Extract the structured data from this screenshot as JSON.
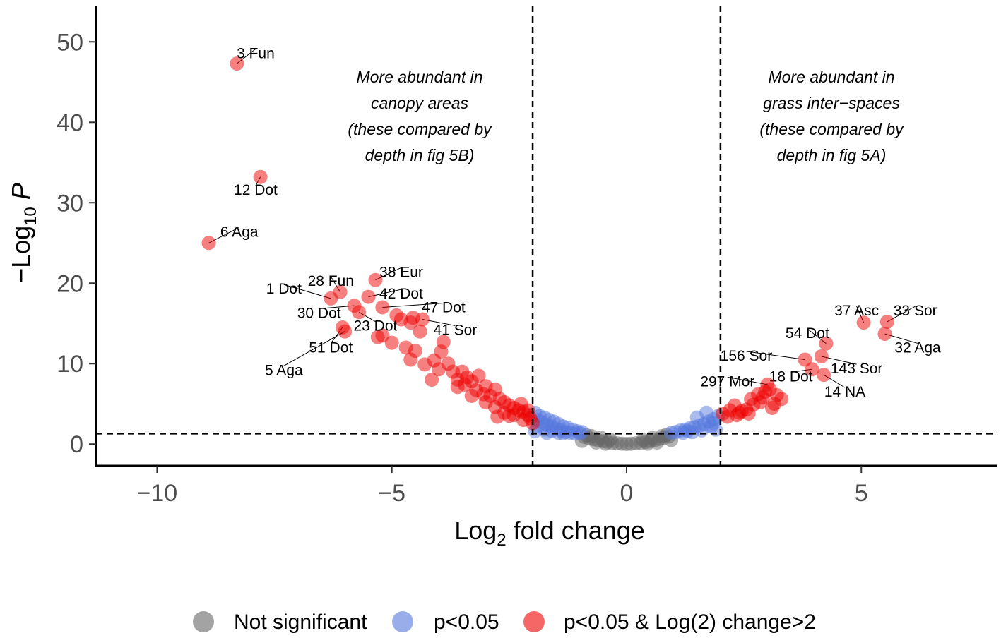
{
  "chart_data": {
    "type": "scatter",
    "subtype": "volcano",
    "xlabel": "Log2 fold change",
    "ylabel": "-Log10 P",
    "xlim": [
      -11.3,
      7.9
    ],
    "ylim": [
      -2.7,
      54.5
    ],
    "xticks": [
      -10,
      -5,
      0,
      5
    ],
    "xtick_labels": [
      "−10",
      "−5",
      "0",
      "5"
    ],
    "yticks": [
      0,
      10,
      20,
      30,
      40,
      50
    ],
    "ytick_labels": [
      "0",
      "10",
      "20",
      "30",
      "40",
      "50"
    ],
    "thresholds": {
      "log2fc": [
        -2,
        2
      ],
      "neg_log10_p": 1.3
    },
    "colors": {
      "ns": "#666666",
      "p": "#5577dd",
      "both": "#ee0000"
    },
    "legend": {
      "position": "bottom",
      "items": [
        {
          "key": "ns",
          "label": "Not significant"
        },
        {
          "key": "p",
          "label": "p<0.05"
        },
        {
          "key": "both",
          "label": "p<0.05 & Log(2) change>2"
        }
      ]
    },
    "annotations": [
      {
        "side": "left",
        "lines": [
          "More abundant in",
          "canopy areas",
          "(these compared by",
          "depth in fig 5B)"
        ]
      },
      {
        "side": "right",
        "lines": [
          "More abundant in",
          "grass inter−spaces",
          "(these compared by",
          "depth in fig 5A)"
        ]
      }
    ],
    "labeled_points": [
      {
        "label": "3 Fun",
        "x": -8.3,
        "y": 47.3,
        "lx": -7.9,
        "ly": 48.6
      },
      {
        "label": "12 Dot",
        "x": -7.8,
        "y": 33.2,
        "lx": -7.9,
        "ly": 31.6
      },
      {
        "label": "6 Aga",
        "x": -8.9,
        "y": 25.0,
        "lx": -8.25,
        "ly": 26.4
      },
      {
        "label": "1 Dot",
        "x": -6.3,
        "y": 18.1,
        "lx": -7.3,
        "ly": 19.3
      },
      {
        "label": "28 Fun",
        "x": -6.1,
        "y": 18.9,
        "lx": -6.3,
        "ly": 20.3
      },
      {
        "label": "38 Eur",
        "x": -5.35,
        "y": 20.4,
        "lx": -4.8,
        "ly": 21.4
      },
      {
        "label": "42 Dot",
        "x": -5.5,
        "y": 18.3,
        "lx": -4.8,
        "ly": 18.7
      },
      {
        "label": "30 Dot",
        "x": -5.8,
        "y": 17.2,
        "lx": -6.55,
        "ly": 16.3
      },
      {
        "label": "47 Dot",
        "x": -5.2,
        "y": 17.0,
        "lx": -3.9,
        "ly": 17.0
      },
      {
        "label": "23 Dot",
        "x": -5.7,
        "y": 16.4,
        "lx": -5.35,
        "ly": 14.7
      },
      {
        "label": "41 Sor",
        "x": -4.35,
        "y": 15.5,
        "lx": -3.65,
        "ly": 14.2
      },
      {
        "label": "51 Dot",
        "x": -6.05,
        "y": 14.5,
        "lx": -6.3,
        "ly": 12.0
      },
      {
        "label": "5 Aga",
        "x": -6.0,
        "y": 14.0,
        "lx": -7.3,
        "ly": 9.2
      },
      {
        "label": "37 Asc",
        "x": 5.05,
        "y": 15.1,
        "lx": 4.9,
        "ly": 16.6
      },
      {
        "label": "33 Sor",
        "x": 5.55,
        "y": 15.2,
        "lx": 6.15,
        "ly": 16.6
      },
      {
        "label": "54 Dot",
        "x": 4.25,
        "y": 12.5,
        "lx": 3.85,
        "ly": 13.8
      },
      {
        "label": "32 Aga",
        "x": 5.5,
        "y": 13.7,
        "lx": 6.2,
        "ly": 12.0
      },
      {
        "label": "156 Sor",
        "x": 3.8,
        "y": 10.5,
        "lx": 2.55,
        "ly": 11.0
      },
      {
        "label": "143 Sor",
        "x": 4.15,
        "y": 10.9,
        "lx": 4.9,
        "ly": 9.4
      },
      {
        "label": "18 Dot",
        "x": 3.95,
        "y": 9.3,
        "lx": 3.5,
        "ly": 8.4
      },
      {
        "label": "14 NA",
        "x": 4.2,
        "y": 8.6,
        "lx": 4.65,
        "ly": 6.5
      },
      {
        "label": "297 Mor",
        "x": 3.0,
        "y": 7.4,
        "lx": 2.15,
        "ly": 7.8
      }
    ],
    "sig_fc": [
      [
        -3.9,
        12.7
      ],
      [
        -3.95,
        11.5
      ],
      [
        -4.1,
        10.4
      ],
      [
        -3.8,
        10.0
      ],
      [
        -4.6,
        10.5
      ],
      [
        -4.3,
        9.9
      ],
      [
        -4.0,
        9.3
      ],
      [
        -4.15,
        8.0
      ],
      [
        -5.0,
        12.6
      ],
      [
        -5.2,
        13.5
      ],
      [
        -4.7,
        12.0
      ],
      [
        -4.5,
        11.6
      ],
      [
        -4.8,
        15.5
      ],
      [
        -4.6,
        15.1
      ],
      [
        -4.4,
        14.0
      ],
      [
        -4.55,
        15.7
      ],
      [
        -4.9,
        16.0
      ],
      [
        -5.3,
        13.3
      ],
      [
        -3.5,
        9.0
      ],
      [
        -3.4,
        8.3
      ],
      [
        -3.6,
        8.0
      ],
      [
        -3.3,
        7.8
      ],
      [
        -3.15,
        8.5
      ],
      [
        -3.0,
        7.2
      ],
      [
        -2.8,
        6.8
      ],
      [
        -3.2,
        6.7
      ],
      [
        -2.9,
        6.0
      ],
      [
        -2.7,
        5.6
      ],
      [
        -2.6,
        5.2
      ],
      [
        -2.5,
        4.8
      ],
      [
        -2.4,
        4.5
      ],
      [
        -2.3,
        4.2
      ],
      [
        -2.2,
        4.0
      ],
      [
        -2.1,
        3.6
      ],
      [
        -2.05,
        3.2
      ],
      [
        -2.2,
        3.0
      ],
      [
        -2.4,
        3.6
      ],
      [
        -2.6,
        3.9
      ],
      [
        -2.8,
        4.6
      ],
      [
        -3.0,
        5.2
      ],
      [
        -3.3,
        6.0
      ],
      [
        -3.6,
        7.1
      ],
      [
        -3.7,
        9.0
      ],
      [
        -2.0,
        2.6
      ],
      [
        -2.1,
        4.2
      ],
      [
        -2.25,
        5.0
      ],
      [
        -2.5,
        3.5
      ],
      [
        -2.75,
        3.4
      ],
      [
        -3.05,
        6.2
      ],
      [
        -3.45,
        7.4
      ],
      [
        2.05,
        3.8
      ],
      [
        2.2,
        4.2
      ],
      [
        2.3,
        4.8
      ],
      [
        2.4,
        3.9
      ],
      [
        2.55,
        4.3
      ],
      [
        2.6,
        3.8
      ],
      [
        2.7,
        4.9
      ],
      [
        2.45,
        4.1
      ],
      [
        2.8,
        6.2
      ],
      [
        2.9,
        5.8
      ],
      [
        3.05,
        6.8
      ],
      [
        3.15,
        5.0
      ],
      [
        3.2,
        6.1
      ],
      [
        3.3,
        5.6
      ],
      [
        2.85,
        5.2
      ],
      [
        2.35,
        3.6
      ],
      [
        2.65,
        5.6
      ],
      [
        2.95,
        6.5
      ],
      [
        3.1,
        4.5
      ],
      [
        2.15,
        3.4
      ]
    ],
    "sig_p": [
      [
        -1.95,
        3.9
      ],
      [
        -1.85,
        3.5
      ],
      [
        -1.75,
        3.3
      ],
      [
        -1.65,
        3.0
      ],
      [
        -1.55,
        2.8
      ],
      [
        -1.45,
        2.5
      ],
      [
        -1.35,
        2.2
      ],
      [
        -1.25,
        2.0
      ],
      [
        -1.15,
        1.8
      ],
      [
        -1.05,
        1.6
      ],
      [
        -0.95,
        1.5
      ],
      [
        -1.9,
        3.0
      ],
      [
        -1.8,
        2.7
      ],
      [
        -1.7,
        2.4
      ],
      [
        -1.6,
        2.2
      ],
      [
        -1.5,
        1.9
      ],
      [
        -1.4,
        1.7
      ],
      [
        -1.3,
        1.5
      ],
      [
        -1.9,
        2.2
      ],
      [
        -1.75,
        1.8
      ],
      [
        -1.6,
        1.6
      ],
      [
        -1.45,
        1.4
      ],
      [
        -1.2,
        1.4
      ],
      [
        -1.0,
        1.35
      ],
      [
        -1.95,
        1.6
      ],
      [
        -1.7,
        1.4
      ],
      [
        -1.35,
        1.35
      ],
      [
        -1.1,
        1.3
      ],
      [
        0.95,
        1.4
      ],
      [
        1.05,
        1.5
      ],
      [
        1.15,
        1.7
      ],
      [
        1.25,
        1.8
      ],
      [
        1.35,
        2.0
      ],
      [
        1.45,
        2.1
      ],
      [
        1.55,
        2.3
      ],
      [
        1.65,
        2.5
      ],
      [
        1.75,
        2.8
      ],
      [
        1.85,
        3.1
      ],
      [
        1.95,
        3.5
      ],
      [
        1.7,
        3.9
      ],
      [
        1.8,
        2.2
      ],
      [
        1.6,
        1.7
      ],
      [
        1.4,
        1.5
      ],
      [
        1.2,
        1.4
      ],
      [
        1.9,
        1.8
      ],
      [
        1.5,
        3.3
      ],
      [
        1.85,
        2.6
      ],
      [
        1.3,
        1.6
      ]
    ],
    "ns": [
      [
        -0.9,
        0.9
      ],
      [
        -0.8,
        0.7
      ],
      [
        -0.7,
        0.6
      ],
      [
        -0.6,
        0.45
      ],
      [
        -0.5,
        0.35
      ],
      [
        -0.4,
        0.25
      ],
      [
        -0.3,
        0.15
      ],
      [
        -0.2,
        0.1
      ],
      [
        -0.1,
        0.05
      ],
      [
        0.0,
        0.02
      ],
      [
        0.1,
        0.05
      ],
      [
        0.2,
        0.1
      ],
      [
        0.3,
        0.15
      ],
      [
        0.4,
        0.25
      ],
      [
        0.5,
        0.35
      ],
      [
        0.6,
        0.5
      ],
      [
        0.7,
        0.65
      ],
      [
        0.8,
        0.8
      ],
      [
        0.9,
        0.95
      ],
      [
        -0.85,
        1.1
      ],
      [
        -0.75,
        1.0
      ],
      [
        -0.55,
        0.8
      ],
      [
        -0.35,
        0.55
      ],
      [
        0.35,
        0.5
      ],
      [
        0.55,
        0.75
      ],
      [
        0.75,
        1.0
      ],
      [
        0.85,
        1.15
      ],
      [
        -0.65,
        0.2
      ],
      [
        0.65,
        0.2
      ],
      [
        -0.95,
        0.4
      ],
      [
        0.95,
        0.5
      ],
      [
        -0.45,
        0.05
      ],
      [
        0.45,
        0.05
      ]
    ]
  }
}
